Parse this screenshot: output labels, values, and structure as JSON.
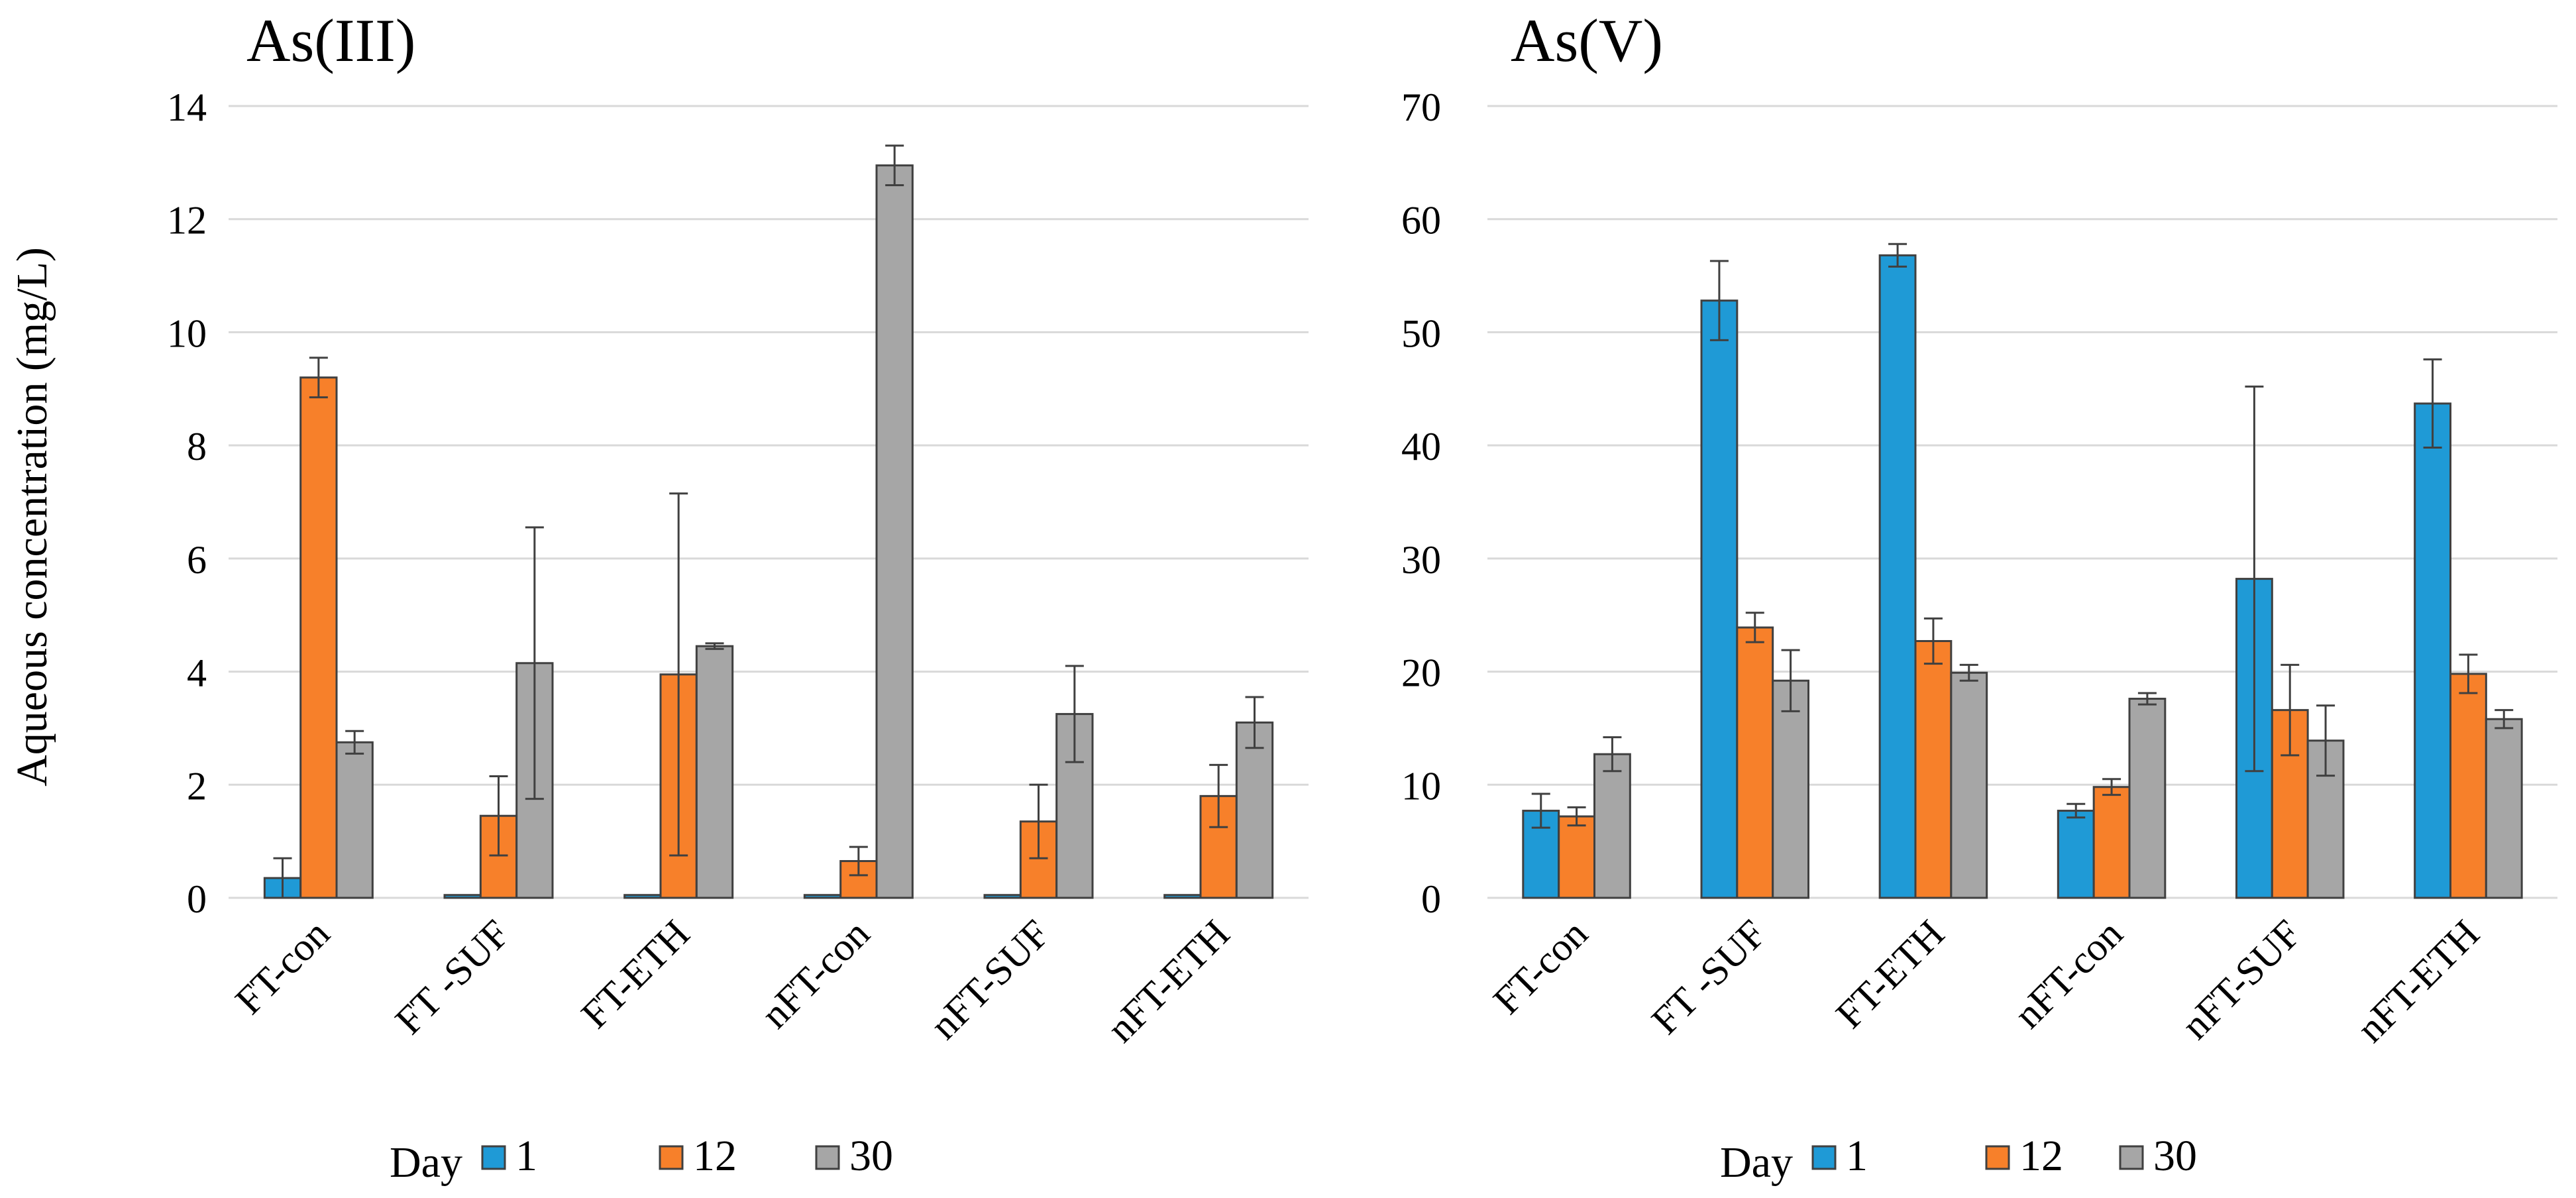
{
  "y_axis_label": "Aqueous concentration (mg/L)",
  "legend": {
    "title": "Day",
    "entries": [
      "1",
      "12",
      "30"
    ]
  },
  "colors": {
    "series": [
      "#1F9AD6",
      "#F7802A",
      "#A6A6A6"
    ],
    "edge": "#404040",
    "grid": "#D9D9D9",
    "error_bar": "#404040"
  },
  "chart_data": [
    {
      "type": "bar",
      "title": "As(III)",
      "xlabel": "",
      "ylabel": "Aqueous concentration (mg/L)",
      "ylim": [
        0,
        14
      ],
      "yticks": [
        0,
        2,
        4,
        6,
        8,
        10,
        12,
        14
      ],
      "grid": true,
      "legend_position": "bottom",
      "categories": [
        "FT-con",
        "FT -SUF",
        "FT-ETH",
        "nFT-con",
        "nFT-SUF",
        "nFT-ETH"
      ],
      "series": [
        {
          "name": "1",
          "values": [
            0.35,
            0.05,
            0.05,
            0.05,
            0.05,
            0.05
          ],
          "errors": [
            0.35,
            0,
            0,
            0,
            0,
            0
          ]
        },
        {
          "name": "12",
          "values": [
            9.2,
            1.45,
            3.95,
            0.65,
            1.35,
            1.8
          ],
          "errors": [
            0.35,
            0.7,
            3.2,
            0.25,
            0.65,
            0.55
          ]
        },
        {
          "name": "30",
          "values": [
            2.75,
            4.15,
            4.45,
            12.95,
            3.25,
            3.1
          ],
          "errors": [
            0.2,
            2.4,
            0.05,
            0.35,
            0.85,
            0.45
          ]
        }
      ]
    },
    {
      "type": "bar",
      "title": "As(V)",
      "xlabel": "",
      "ylabel": "",
      "ylim": [
        0,
        70
      ],
      "yticks": [
        0,
        10,
        20,
        30,
        40,
        50,
        60,
        70
      ],
      "grid": true,
      "legend_position": "bottom",
      "categories": [
        "FT-con",
        "FT -SUF",
        "FT-ETH",
        "nFT-con",
        "nFT-SUF",
        "nFT-ETH"
      ],
      "series": [
        {
          "name": "1",
          "values": [
            7.7,
            52.8,
            56.8,
            7.7,
            28.2,
            43.7
          ],
          "errors": [
            1.5,
            3.5,
            1.0,
            0.6,
            17.0,
            3.9
          ]
        },
        {
          "name": "12",
          "values": [
            7.2,
            23.9,
            22.7,
            9.8,
            16.6,
            19.8
          ],
          "errors": [
            0.8,
            1.3,
            2.0,
            0.7,
            4.0,
            1.7
          ]
        },
        {
          "name": "30",
          "values": [
            12.7,
            19.2,
            19.9,
            17.6,
            13.9,
            15.8
          ],
          "errors": [
            1.5,
            2.7,
            0.7,
            0.5,
            3.1,
            0.8
          ]
        }
      ]
    }
  ]
}
